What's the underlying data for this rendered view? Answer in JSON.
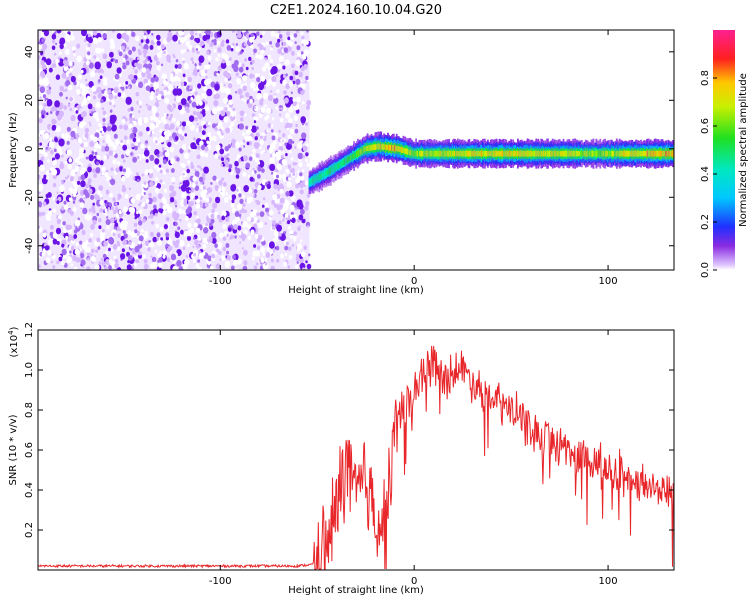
{
  "title": "C2E1.2024.160.10.04.G20",
  "colors": {
    "snr_line": "#e8262a",
    "axis": "#000000"
  },
  "chart_data": [
    {
      "type": "heatmap",
      "xlabel": "Height of straight line (km)",
      "ylabel": "Frequency (Hz)",
      "xlim": [
        -194,
        134
      ],
      "ylim": [
        -50,
        49
      ],
      "x_ticks": [
        -100,
        0,
        100
      ],
      "y_ticks": [
        -40,
        -20,
        0,
        20,
        40
      ],
      "x_tick_labels": [
        "-100",
        "0",
        "100"
      ],
      "y_tick_labels": [
        "-40",
        "-20",
        "0",
        "20",
        "40"
      ],
      "noise_region": {
        "x_from": -194,
        "x_to": -54,
        "freq_from": -50,
        "freq_to": 49
      },
      "signal_track": [
        {
          "x": -54,
          "freq": -14,
          "amp": 0.45
        },
        {
          "x": -45,
          "freq": -10,
          "amp": 0.5
        },
        {
          "x": -35,
          "freq": -5,
          "amp": 0.55
        },
        {
          "x": -25,
          "freq": 0,
          "amp": 0.75
        },
        {
          "x": -18,
          "freq": 1,
          "amp": 0.85
        },
        {
          "x": -8,
          "freq": 0,
          "amp": 0.9
        },
        {
          "x": 0,
          "freq": -2,
          "amp": 0.7
        },
        {
          "x": 10,
          "freq": -2,
          "amp": 0.8
        },
        {
          "x": 40,
          "freq": -2,
          "amp": 0.85
        },
        {
          "x": 80,
          "freq": -2,
          "amp": 0.8
        },
        {
          "x": 95,
          "freq": -2,
          "amp": 0.7
        },
        {
          "x": 110,
          "freq": -2,
          "amp": 0.85
        },
        {
          "x": 134,
          "freq": -2,
          "amp": 0.9
        }
      ],
      "colorbar": {
        "label": "Normalized spectral amplitude",
        "range": [
          0,
          1
        ],
        "ticks": [
          0.0,
          0.2,
          0.4,
          0.6,
          0.8
        ],
        "tick_labels": [
          "0.0",
          "0.2",
          "0.4",
          "0.6",
          "0.8"
        ]
      }
    },
    {
      "type": "line",
      "xlabel": "Height of straight line (km)",
      "ylabel": "SNR (10 * v/v)",
      "scale_label": "(x10",
      "scale_exponent": "4",
      "scale_close": ")",
      "xlim": [
        -194,
        134
      ],
      "ylim": [
        0,
        1.2
      ],
      "x_ticks": [
        -100,
        0,
        100
      ],
      "y_ticks": [
        0.2,
        0.4,
        0.6,
        0.8,
        1.0,
        1.2
      ],
      "x_tick_labels": [
        "-100",
        "0",
        "100"
      ],
      "y_tick_labels": [
        "0.2",
        "0.4",
        "0.6",
        "0.8",
        "1.0",
        "1.2"
      ],
      "series": [
        {
          "x": [
            -194,
            -150,
            -100,
            -60,
            -50,
            -45,
            -40,
            -35,
            -30,
            -25,
            -20,
            -15,
            -10,
            -5,
            0,
            5,
            10,
            15,
            20,
            25,
            30,
            40,
            50,
            60,
            70,
            80,
            90,
            100,
            110,
            120,
            130,
            134
          ],
          "values": [
            0.02,
            0.02,
            0.02,
            0.02,
            0.03,
            0.1,
            0.3,
            0.55,
            0.35,
            0.45,
            0.3,
            0.2,
            0.75,
            0.8,
            0.9,
            1.0,
            1.05,
            0.95,
            1.0,
            1.0,
            0.95,
            0.85,
            0.8,
            0.7,
            0.65,
            0.6,
            0.55,
            0.5,
            0.45,
            0.42,
            0.4,
            0.38
          ]
        }
      ]
    }
  ]
}
